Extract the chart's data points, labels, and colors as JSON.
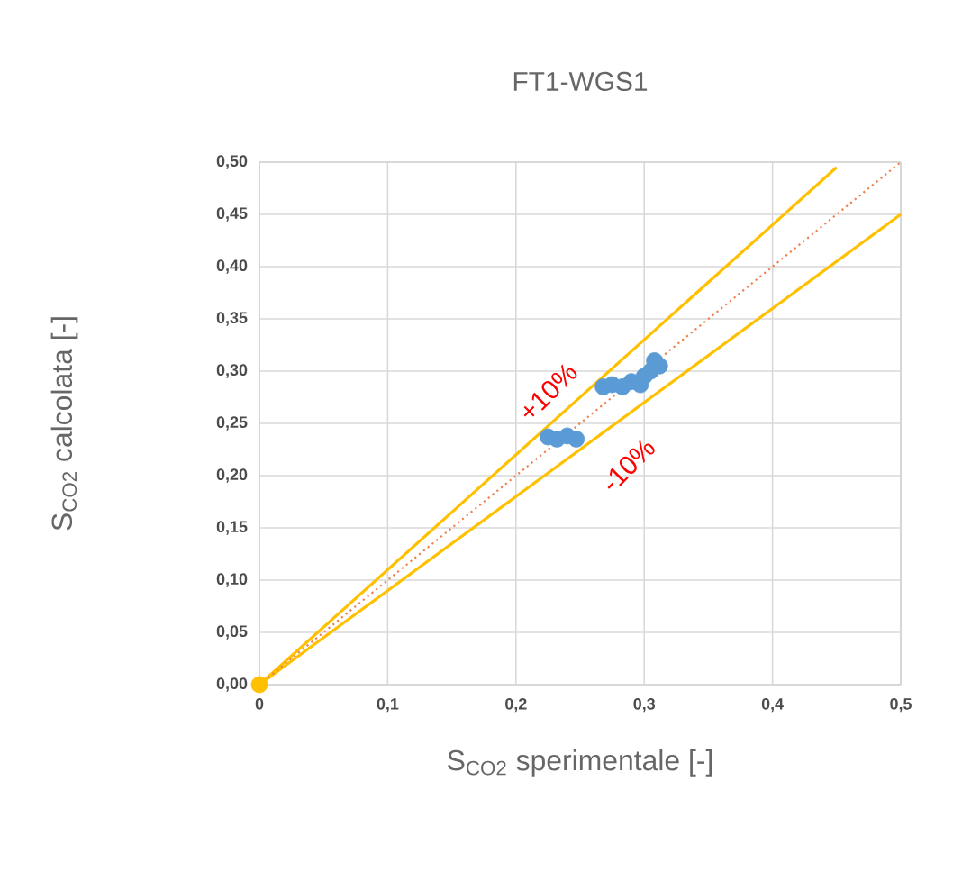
{
  "chart_data": {
    "type": "scatter",
    "title": "FT1-WGS1",
    "xlabel": "S$_{CO2}$ sperimentale [-]",
    "ylabel": "S$_{CO2}$ calcolata [-]",
    "xlim": [
      0,
      0.5
    ],
    "ylim": [
      0,
      0.5
    ],
    "xticks": [
      0,
      {
        "value": 0.1,
        "label": "0,1"
      },
      {
        "value": 0.2,
        "label": "0,2"
      },
      {
        "value": 0.3,
        "label": "0,3"
      },
      {
        "value": 0.4,
        "label": "0,4"
      },
      {
        "value": 0.5,
        "label": "0,5"
      }
    ],
    "yticks": [
      {
        "value": 0,
        "label": "0,00"
      },
      {
        "value": 0.05,
        "label": "0,05"
      },
      {
        "value": 0.1,
        "label": "0,10"
      },
      {
        "value": 0.15,
        "label": "0,15"
      },
      {
        "value": 0.2,
        "label": "0,20"
      },
      {
        "value": 0.25,
        "label": "0,25"
      },
      {
        "value": 0.3,
        "label": "0,30"
      },
      {
        "value": 0.35,
        "label": "0,35"
      },
      {
        "value": 0.4,
        "label": "0,40"
      },
      {
        "value": 0.45,
        "label": "0,45"
      },
      {
        "value": 0.5,
        "label": "0,50"
      }
    ],
    "grid": true,
    "series": [
      {
        "type": "line",
        "color": "#ffc000",
        "line_style": "solid",
        "marker": "none",
        "x": [
          0,
          0.45
        ],
        "values": [
          0,
          0.495
        ]
      },
      {
        "type": "line",
        "color": "#ffc000",
        "line_style": "solid",
        "marker": "none",
        "x": [
          0,
          0.5
        ],
        "values": [
          0,
          0.45
        ]
      },
      {
        "type": "line",
        "color": "#f08050",
        "line_style": "dotted",
        "marker": "none",
        "x": [
          0,
          0.5
        ],
        "values": [
          0,
          0.5
        ]
      },
      {
        "color": "#ffc000",
        "marker": "circle",
        "x": [
          0
        ],
        "values": [
          0
        ]
      },
      {
        "color": "#5b9bd5",
        "marker": "circle",
        "x": [
          0.225,
          0.232,
          0.24,
          0.247,
          0.268,
          0.275,
          0.283,
          0.29,
          0.297,
          0.3,
          0.305,
          0.308,
          0.312
        ],
        "values": [
          0.237,
          0.235,
          0.238,
          0.235,
          0.285,
          0.287,
          0.285,
          0.29,
          0.287,
          0.295,
          0.3,
          0.31,
          0.305
        ]
      }
    ],
    "annotations": [
      "+10%",
      "-10%"
    ]
  }
}
